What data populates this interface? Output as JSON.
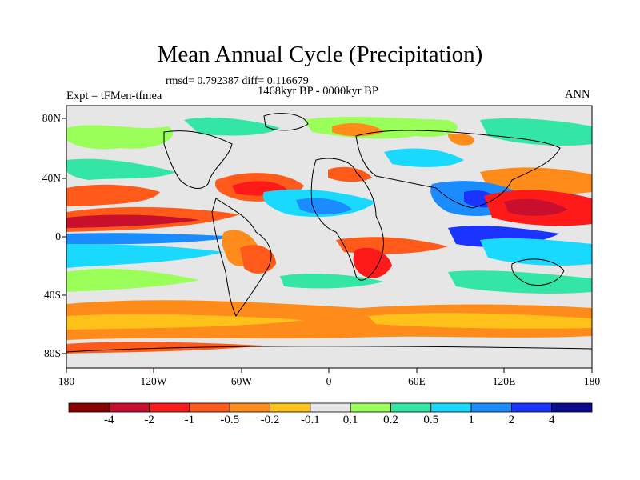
{
  "title": "Mean Annual Cycle (Precipitation)",
  "stats": "rmsd= 0.792387 diff= 0.116679",
  "period": "1468kyr BP - 0000kyr BP",
  "experiment": "Expt = tFMen-tfmea",
  "season": "ANN",
  "lat_labels": [
    "80N",
    "40N",
    "0",
    "40S",
    "80S"
  ],
  "lon_labels": [
    "180",
    "120W",
    "60W",
    "0",
    "60E",
    "120E",
    "180"
  ],
  "colorbar": {
    "labels": [
      "-4",
      "-2",
      "-1",
      "-0.5",
      "-0.2",
      "-0.1",
      "0.1",
      "0.2",
      "0.5",
      "1",
      "2",
      "4"
    ],
    "colors": [
      "#8b0000",
      "#c8102e",
      "#ff1a1a",
      "#ff5a1a",
      "#ff8c1a",
      "#ffc21a",
      "#e6e6e6",
      "#9aff59",
      "#33e6a6",
      "#19d9ff",
      "#1a8cff",
      "#1a33ff",
      "#0a0a8c"
    ]
  },
  "colors": {
    "neutral": "#e6e6e6",
    "land_outline": "#000000"
  }
}
